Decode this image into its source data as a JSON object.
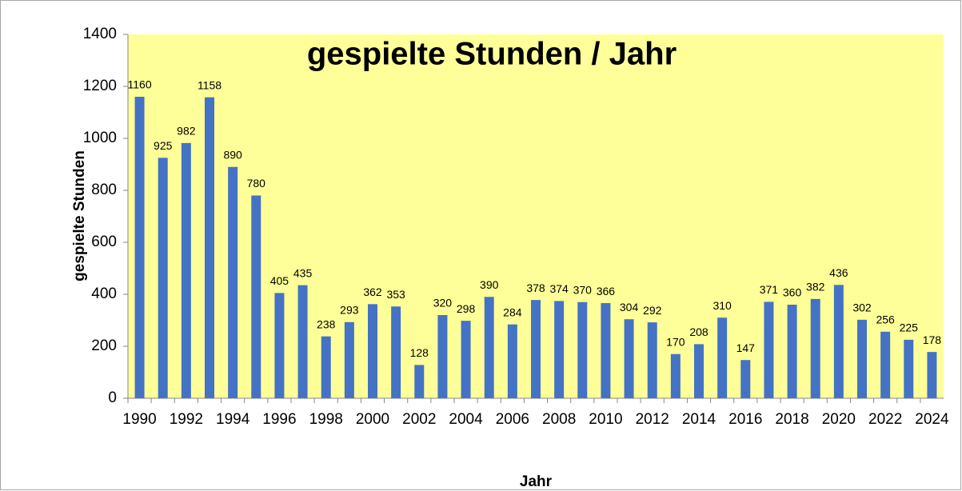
{
  "chart_data": {
    "type": "bar",
    "title": "gespielte Stunden / Jahr",
    "x_label": "Jahr",
    "y_label": "gespielte Stunden",
    "categories": [
      "1990",
      null,
      "1992",
      null,
      "1994",
      null,
      "1996",
      null,
      "1998",
      null,
      "2000",
      null,
      "2002",
      null,
      "2004",
      null,
      "2006",
      null,
      "2008",
      null,
      "2010",
      null,
      "2012",
      null,
      "2014",
      null,
      "2016",
      null,
      "2018",
      null,
      "2020",
      null,
      "2022",
      null,
      "2024"
    ],
    "values": [
      1160,
      925,
      982,
      1158,
      890,
      780,
      405,
      435,
      238,
      293,
      362,
      353,
      128,
      320,
      298,
      390,
      284,
      378,
      374,
      370,
      366,
      304,
      292,
      170,
      208,
      310,
      147,
      371,
      360,
      382,
      436,
      302,
      256,
      225,
      178
    ],
    "color": "#4472c4",
    "background": "#ffff99",
    "ylim": [
      0,
      1400
    ],
    "yticks": [
      0,
      200,
      400,
      600,
      800,
      1000,
      1200,
      1400
    ],
    "grid": false
  }
}
